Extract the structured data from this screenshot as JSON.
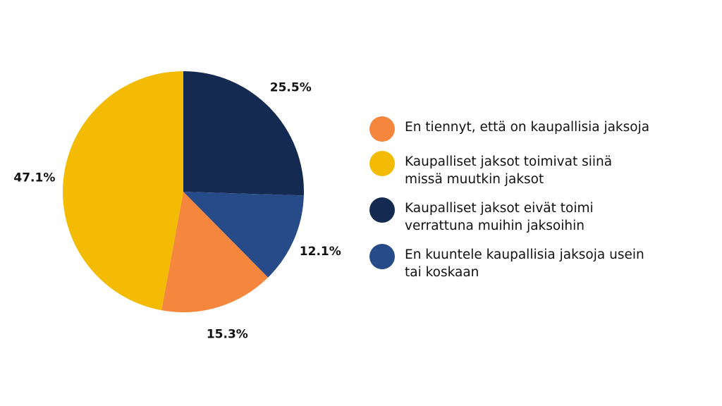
{
  "chart_data": {
    "type": "pie",
    "slices": [
      {
        "label": "En tiennyt, että on kaupallisia jaksoja",
        "value": 15.3,
        "value_label": "15.3%",
        "color": "#F4863D"
      },
      {
        "label": "Kaupalliset jaksot toimivat siinä missä muutkin jaksot",
        "value": 47.1,
        "value_label": "47.1%",
        "color": "#F3BB04"
      },
      {
        "label": "Kaupalliset jaksot eivät toimi verrattuna muihin jaksoihin",
        "value": 25.5,
        "value_label": "25.5%",
        "color": "#152A50"
      },
      {
        "label": "En kuuntele kaupallisia jaksoja usein tai koskaan",
        "value": 12.1,
        "value_label": "12.1%",
        "color": "#274A88"
      }
    ],
    "draw_order": [
      2,
      3,
      0,
      1
    ],
    "start": "12 o'clock",
    "direction": "clockwise",
    "legend_position": "right"
  }
}
